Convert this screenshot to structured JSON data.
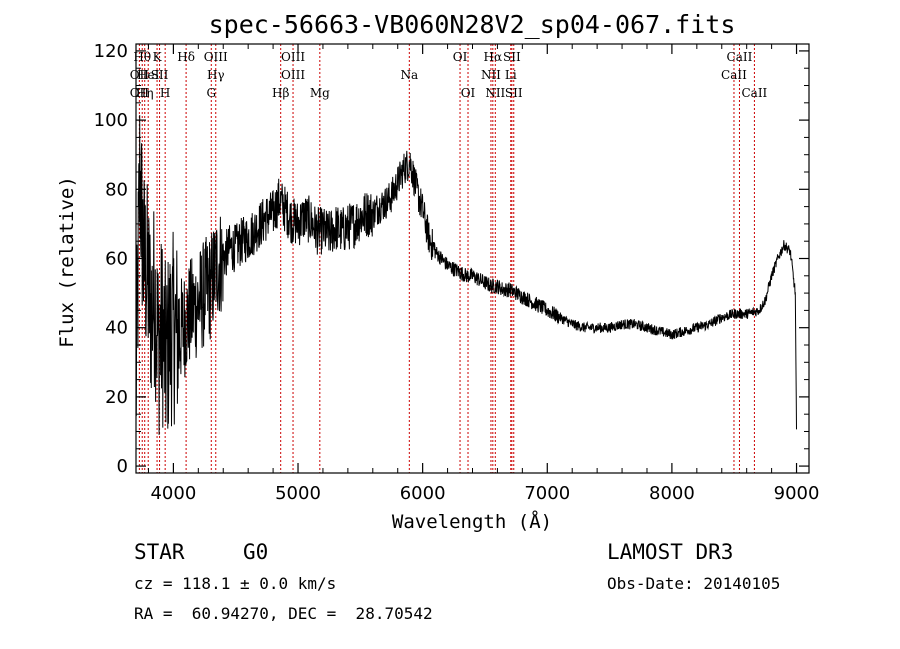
{
  "chart_data": {
    "type": "line",
    "title": "spec-56663-VB060N28V2_sp04-067.fits",
    "xlabel": "Wavelength (Å)",
    "ylabel": "Flux (relative)",
    "xlim": [
      3700,
      9100
    ],
    "ylim": [
      -2,
      122
    ],
    "xticks": [
      4000,
      5000,
      6000,
      7000,
      8000,
      9000
    ],
    "yticks": [
      0,
      20,
      40,
      60,
      80,
      100,
      120
    ],
    "xtick_labels": [
      "4000",
      "5000",
      "6000",
      "7000",
      "8000",
      "9000"
    ],
    "ytick_labels": [
      "0",
      "20",
      "40",
      "60",
      "80",
      "100",
      "120"
    ],
    "series": [
      {
        "name": "flux",
        "x": [
          3700,
          3730,
          3760,
          3790,
          3820,
          3850,
          3880,
          3910,
          3940,
          3970,
          4000,
          4050,
          4100,
          4150,
          4200,
          4250,
          4300,
          4350,
          4400,
          4450,
          4500,
          4550,
          4600,
          4650,
          4700,
          4750,
          4800,
          4850,
          4900,
          4950,
          5000,
          5050,
          5100,
          5150,
          5200,
          5250,
          5300,
          5350,
          5400,
          5450,
          5500,
          5550,
          5600,
          5650,
          5700,
          5750,
          5800,
          5850,
          5900,
          5950,
          6000,
          6050,
          6100,
          6150,
          6200,
          6250,
          6300,
          6350,
          6400,
          6450,
          6500,
          6550,
          6600,
          6650,
          6700,
          6750,
          6800,
          6850,
          6900,
          6950,
          7000,
          7100,
          7200,
          7300,
          7400,
          7500,
          7600,
          7700,
          7800,
          7900,
          8000,
          8100,
          8200,
          8300,
          8400,
          8500,
          8600,
          8700,
          8750,
          8800,
          8850,
          8900,
          8950,
          8990,
          9000
        ],
        "values": [
          20,
          85,
          60,
          55,
          45,
          50,
          35,
          40,
          30,
          38,
          40,
          38,
          42,
          45,
          47,
          50,
          52,
          58,
          60,
          63,
          63,
          65,
          66,
          68,
          70,
          72,
          73,
          77,
          74,
          71,
          70,
          72,
          71,
          68,
          68,
          67,
          69,
          68,
          69,
          70,
          72,
          73,
          73,
          75,
          76,
          78,
          82,
          86,
          88,
          80,
          74,
          66,
          62,
          60,
          58,
          57,
          56,
          55,
          55,
          54,
          53,
          52,
          52,
          51,
          51,
          50,
          49,
          48,
          47,
          46,
          45,
          43,
          41,
          40,
          40,
          40,
          41,
          41,
          40,
          39,
          38,
          39,
          40,
          41,
          43,
          44,
          44,
          45,
          48,
          55,
          60,
          64,
          62,
          50,
          10
        ]
      }
    ],
    "line_markers": [
      {
        "wavelength": 3727,
        "label": "OII",
        "row": 1
      },
      {
        "wavelength": 3727,
        "label": "OII",
        "row": 2
      },
      {
        "wavelength": 3750,
        "label": "Hθ",
        "row": 0
      },
      {
        "wavelength": 3770,
        "label": "Hη",
        "row": 2
      },
      {
        "wavelength": 3798,
        "label": "HeI",
        "row": 1
      },
      {
        "wavelength": 3869,
        "label": "K",
        "row": 0
      },
      {
        "wavelength": 3889,
        "label": "SII",
        "row": 1
      },
      {
        "wavelength": 3934,
        "label": "H",
        "row": 2
      },
      {
        "wavelength": 4102,
        "label": "Hδ",
        "row": 0
      },
      {
        "wavelength": 4340,
        "label": "OIII",
        "row": 0
      },
      {
        "wavelength": 4340,
        "label": "Hγ",
        "row": 1
      },
      {
        "wavelength": 4304,
        "label": "G",
        "row": 2
      },
      {
        "wavelength": 4861,
        "label": "Hβ",
        "row": 2
      },
      {
        "wavelength": 4960,
        "label": "OIII",
        "row": 0
      },
      {
        "wavelength": 4960,
        "label": "OIII",
        "row": 1
      },
      {
        "wavelength": 5175,
        "label": "Mg",
        "row": 2
      },
      {
        "wavelength": 5893,
        "label": "Na",
        "row": 1
      },
      {
        "wavelength": 6300,
        "label": "OI",
        "row": 0
      },
      {
        "wavelength": 6364,
        "label": "OI",
        "row": 2
      },
      {
        "wavelength": 6563,
        "label": "Hα",
        "row": 0
      },
      {
        "wavelength": 6548,
        "label": "NII",
        "row": 1
      },
      {
        "wavelength": 6583,
        "label": "NII",
        "row": 2
      },
      {
        "wavelength": 6707,
        "label": "Li",
        "row": 1
      },
      {
        "wavelength": 6716,
        "label": "SII",
        "row": 0
      },
      {
        "wavelength": 6731,
        "label": "SII",
        "row": 2
      },
      {
        "wavelength": 8498,
        "label": "CaII",
        "row": 1
      },
      {
        "wavelength": 8542,
        "label": "CaII",
        "row": 0
      },
      {
        "wavelength": 8662,
        "label": "CaII",
        "row": 2
      }
    ],
    "marker_color": "#cc0000"
  },
  "info": {
    "class_label": "STAR",
    "subclass": "G0",
    "survey": "LAMOST DR3",
    "cz_line": "cz = 118.1 ± 0.0 km/s",
    "obs_date": "Obs-Date: 20140105",
    "radec_line": "RA =  60.94270, DEC =  28.70542"
  }
}
